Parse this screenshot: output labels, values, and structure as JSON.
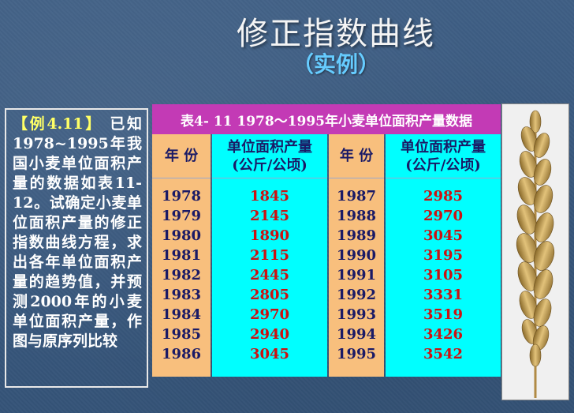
{
  "slide": {
    "title": "修正指数曲线",
    "subtitle": "（实例）"
  },
  "example": {
    "tag": "【例4.11】",
    "text": " 已知1978~1995年我国小麦单位面积产量的数据如表11-12。试确定小麦单位面积产量的修正指数曲线方程，求出各年单位面积产量的趋势值，并预测2000年的小麦单位面积产量，作图与原序列比较"
  },
  "table": {
    "caption": "表4- 11  1978～1995年小麦单位面积产量数据",
    "year_header": "年 份",
    "value_header_line1": "单位面积产量",
    "value_header_line2": "(公斤/公顷)",
    "left_years": [
      "1978",
      "1979",
      "1980",
      "1981",
      "1982",
      "1983",
      "1984",
      "1985",
      "1986"
    ],
    "left_values": [
      "1845",
      "2145",
      "1890",
      "2115",
      "2445",
      "2805",
      "2970",
      "2940",
      "3045"
    ],
    "right_years": [
      "1987",
      "1988",
      "1989",
      "1990",
      "1991",
      "1992",
      "1993",
      "1994",
      "1995"
    ],
    "right_values": [
      "2985",
      "2970",
      "3045",
      "3195",
      "3105",
      "3331",
      "3519",
      "3426",
      "3542"
    ]
  },
  "colors": {
    "caption_bg": "#c33ab5",
    "year_col_bg": "#f8bf7d",
    "value_col_bg": "#00ffff",
    "value_text": "#cc1111",
    "subtitle": "#66ccff"
  },
  "image": {
    "icon": "wheat-ear-icon"
  }
}
